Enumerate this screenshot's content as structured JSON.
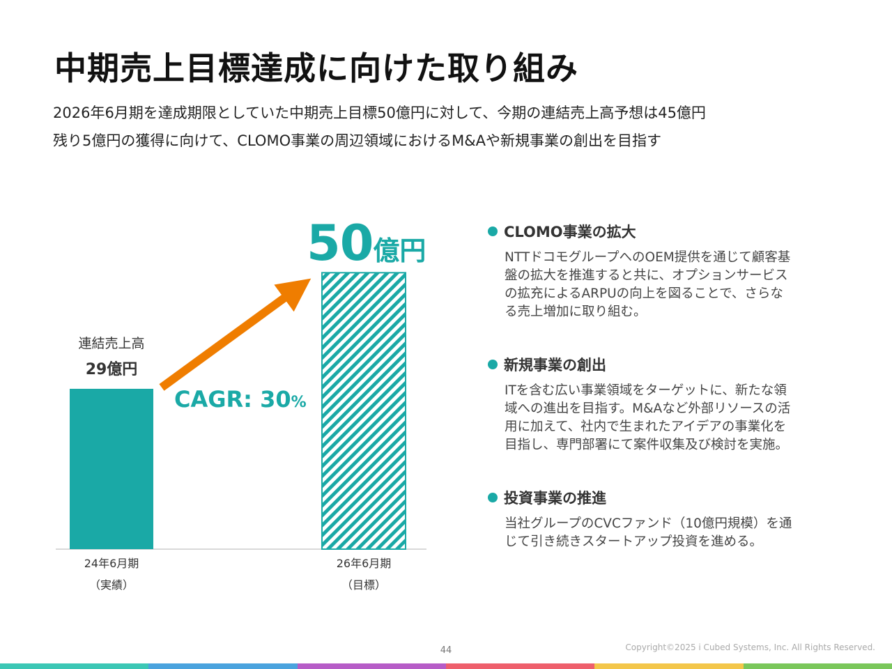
{
  "title": "中期売上目標達成に向けた取り組み",
  "subtitle": [
    "2026年6月期を達成期限としていた中期売上目標50億円に対して、今期の連結売上高予想は45億円",
    "残り5億円の獲得に向けて、CLOMO事業の周辺領域におけるM&Aや新規事業の創出を目指す"
  ],
  "chart_data": {
    "type": "bar",
    "categories": [
      "24年6月期（実績）",
      "26年6月期（目標）"
    ],
    "values": [
      29,
      50
    ],
    "ylim": [
      0,
      60
    ],
    "grid": false,
    "series_label": "連結売上高",
    "bar_labels": [
      "29億円",
      "50億円"
    ],
    "annotation": "CAGR: 30%",
    "bar_styles": [
      "solid",
      "hatched"
    ],
    "color": "#1aa9a6",
    "arrow_color": "#ef7d00"
  },
  "chart_text": {
    "bar1_name": "連結売上高",
    "bar1_value": "29億円",
    "bar2_num": "50",
    "bar2_unit": "億円",
    "cagr_main": "CAGR: 30",
    "cagr_pct": "%",
    "x1_line1": "24年6月期",
    "x1_line2": "（実績）",
    "x2_line1": "26年6月期",
    "x2_line2": "（目標）"
  },
  "sections": [
    {
      "heading": "CLOMO事業の拡大",
      "lines": [
        "NTTドコモグループへのOEM提供を通じて顧客基",
        "盤の拡大を推進すると共に、オプションサービス",
        "の拡充によるARPUの向上を図ることで、さらな",
        "る売上増加に取り組む。"
      ]
    },
    {
      "heading": "新規事業の創出",
      "lines": [
        "ITを含む広い事業領域をターゲットに、新たな領",
        "域への進出を目指す。M&Aなど外部リソースの活",
        "用に加えて、社内で生まれたアイデアの事業化を",
        "目指し、専門部署にて案件収集及び検討を実施。"
      ]
    },
    {
      "heading": "投資事業の推進",
      "lines": [
        "当社グループのCVCファンド（10億円規模）を通",
        "じて引き続きスタートアップ投資を進める。"
      ]
    }
  ],
  "page_number": "44",
  "copyright": "Copyright©2025 i Cubed Systems, Inc. All Rights Reserved.",
  "colors": {
    "accent": "#1aa9a6",
    "arrow": "#ef7d00",
    "footer": [
      "#3cc7b5",
      "#4aa3de",
      "#b65cc7",
      "#ee5f6c",
      "#f3c64a",
      "#7ac75b"
    ]
  }
}
